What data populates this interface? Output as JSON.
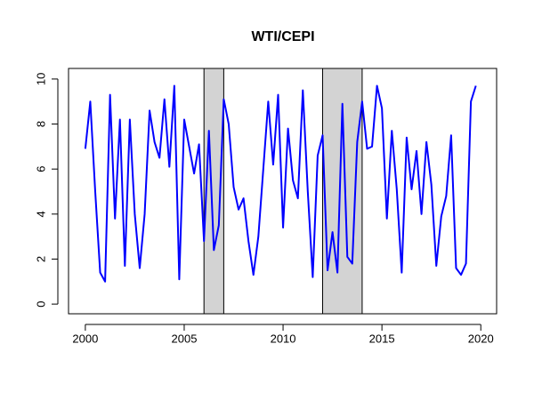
{
  "chart_data": {
    "type": "line",
    "title": "WTI/CEPI",
    "x": [
      2000,
      2000.25,
      2000.5,
      2000.75,
      2001,
      2001.25,
      2001.5,
      2001.75,
      2002,
      2002.25,
      2002.5,
      2002.75,
      2003,
      2003.25,
      2003.5,
      2003.75,
      2004,
      2004.25,
      2004.5,
      2004.75,
      2005,
      2005.25,
      2005.5,
      2005.75,
      2006,
      2006.25,
      2006.5,
      2006.75,
      2007,
      2007.25,
      2007.5,
      2007.75,
      2008,
      2008.25,
      2008.5,
      2008.75,
      2009,
      2009.25,
      2009.5,
      2009.75,
      2010,
      2010.25,
      2010.5,
      2010.75,
      2011,
      2011.25,
      2011.5,
      2011.75,
      2012,
      2012.25,
      2012.5,
      2012.75,
      2013,
      2013.25,
      2013.5,
      2013.75,
      2014,
      2014.25,
      2014.5,
      2014.75,
      2015,
      2015.25,
      2015.5,
      2015.75,
      2016,
      2016.25,
      2016.5,
      2016.75,
      2017,
      2017.25,
      2017.5,
      2017.75,
      2018,
      2018.25,
      2018.5,
      2018.75,
      2019,
      2019.25,
      2019.5,
      2019.75
    ],
    "values": [
      6.9,
      9.0,
      5.0,
      1.4,
      1.0,
      9.3,
      3.8,
      8.2,
      1.7,
      8.2,
      4.0,
      1.6,
      4.0,
      8.6,
      7.2,
      6.5,
      9.1,
      6.1,
      9.7,
      1.1,
      8.2,
      7.0,
      5.8,
      7.1,
      2.8,
      7.7,
      2.4,
      3.5,
      9.1,
      8.0,
      5.2,
      4.2,
      4.7,
      2.8,
      1.3,
      3.0,
      6.0,
      9.0,
      6.2,
      9.3,
      3.4,
      7.8,
      5.5,
      4.7,
      9.5,
      5.0,
      1.2,
      6.6,
      7.5,
      1.5,
      3.2,
      1.4,
      8.9,
      2.1,
      1.8,
      7.2,
      9.0,
      6.9,
      7.0,
      9.7,
      8.7,
      3.8,
      7.7,
      5.1,
      1.4,
      7.4,
      5.1,
      6.8,
      4.0,
      7.2,
      5.3,
      1.7,
      3.9,
      4.8,
      7.5,
      1.6,
      1.3,
      1.8,
      9.0,
      9.7
    ],
    "color": "#0000ff",
    "shaded": [
      [
        2006,
        2007
      ],
      [
        2012,
        2014
      ]
    ],
    "shade_color": "#d3d3d3",
    "xlim": [
      1999.15,
      2020.8
    ],
    "xticks": [
      2000,
      2005,
      2010,
      2015,
      2020
    ],
    "ylim": [
      -0.43,
      10.47
    ],
    "yticks": [
      0,
      2,
      4,
      6,
      8,
      10
    ]
  }
}
